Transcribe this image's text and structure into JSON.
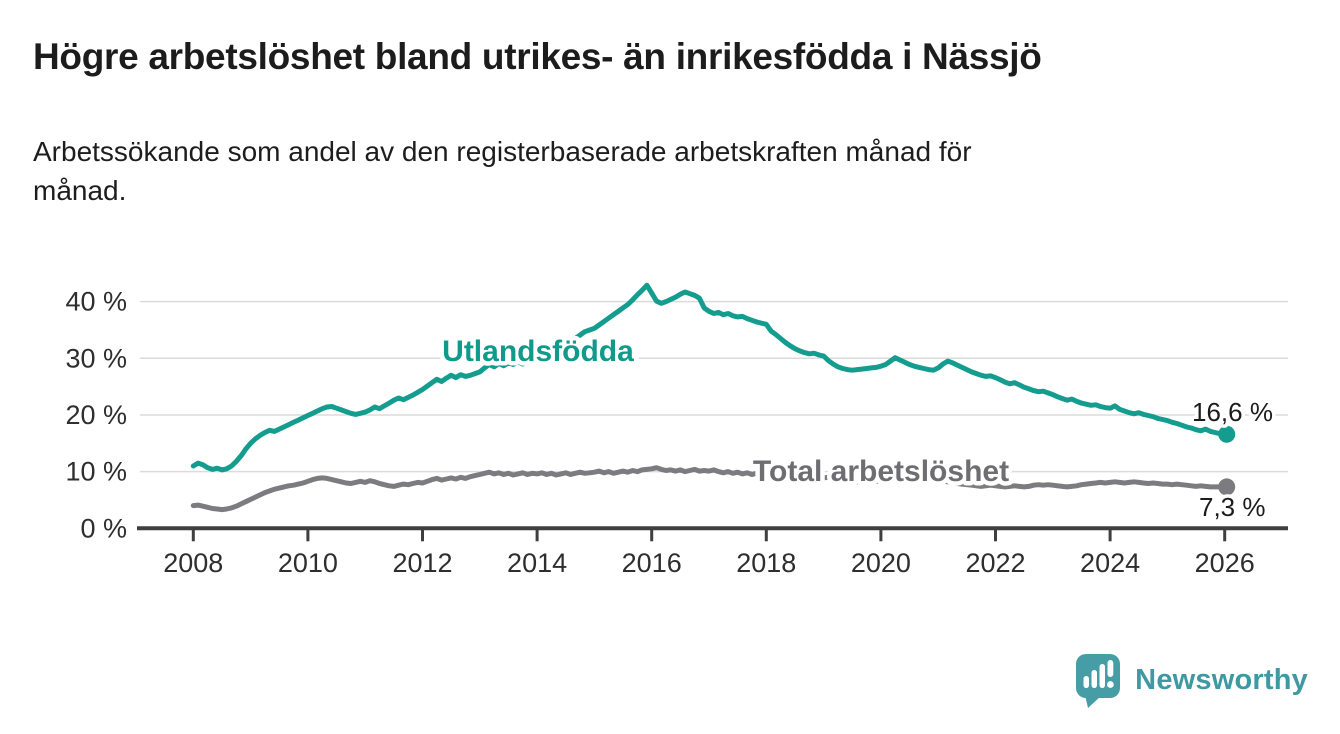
{
  "header": {
    "title": "Högre arbetslöshet bland utrikes- än inrikesfödda i Nässjö",
    "subtitle": "Arbetssökande som andel av den registerbaserade arbetskraften månad för\nmånad."
  },
  "chart_data": {
    "type": "line",
    "title": "Högre arbetslöshet bland utrikes- än inrikesfödda i Nässjö",
    "xlabel": "",
    "ylabel": "",
    "ylim": [
      0,
      44
    ],
    "grid": "horizontal",
    "x_start": "2008-01",
    "x_end": "2026-01",
    "points_per_year": 12,
    "x_tick_labels": [
      "2008",
      "2010",
      "2012",
      "2014",
      "2016",
      "2018",
      "2020",
      "2022",
      "2024",
      "2026"
    ],
    "y_tick_labels": [
      "0 %",
      "10 %",
      "20 %",
      "30 %",
      "40 %"
    ],
    "y_tick_values": [
      0,
      10,
      20,
      30,
      40
    ],
    "colors": {
      "teal_line": "#149d8e",
      "teal_label": "#0f9a8b",
      "gray_line": "#7c7c80",
      "gray_label": "#6e6e72",
      "axis": "#3f3f3f",
      "tick_text": "#2e2e2e",
      "gridline": "#dbdbdb",
      "value_text": "#1c1c1c"
    },
    "series": [
      {
        "name": "Utlandsfödda",
        "end_label": "16,6 %",
        "end_value": 16.6,
        "values": [
          11.0,
          11.5,
          11.2,
          10.7,
          10.4,
          10.6,
          10.3,
          10.5,
          11.0,
          11.8,
          12.8,
          14.0,
          15.0,
          15.8,
          16.4,
          16.9,
          17.3,
          17.1,
          17.5,
          17.9,
          18.3,
          18.7,
          19.1,
          19.5,
          19.9,
          20.3,
          20.7,
          21.1,
          21.4,
          21.5,
          21.2,
          20.9,
          20.6,
          20.3,
          20.1,
          20.3,
          20.5,
          20.9,
          21.4,
          21.1,
          21.6,
          22.1,
          22.6,
          23.0,
          22.7,
          23.1,
          23.5,
          24.0,
          24.5,
          25.1,
          25.7,
          26.3,
          25.9,
          26.5,
          27.0,
          26.6,
          27.1,
          26.8,
          27.0,
          27.3,
          27.6,
          28.3,
          28.9,
          28.5,
          29.1,
          28.7,
          29.2,
          28.9,
          29.4,
          29.0,
          29.3,
          29.5,
          29.4,
          29.8,
          30.2,
          30.6,
          31.0,
          31.5,
          32.1,
          32.8,
          33.5,
          34.1,
          34.7,
          35.0,
          35.3,
          35.9,
          36.5,
          37.1,
          37.7,
          38.3,
          38.9,
          39.5,
          40.3,
          41.2,
          42.0,
          42.9,
          41.5,
          40.1,
          39.7,
          40.0,
          40.4,
          40.8,
          41.3,
          41.7,
          41.4,
          41.1,
          40.6,
          38.9,
          38.3,
          37.9,
          38.1,
          37.7,
          37.9,
          37.5,
          37.3,
          37.4,
          37.0,
          36.7,
          36.4,
          36.2,
          36.0,
          34.8,
          34.2,
          33.5,
          32.8,
          32.2,
          31.7,
          31.3,
          31.0,
          30.8,
          30.9,
          30.6,
          30.4,
          29.6,
          29.0,
          28.5,
          28.2,
          28.0,
          27.9,
          28.0,
          28.1,
          28.2,
          28.3,
          28.4,
          28.6,
          28.9,
          29.5,
          30.1,
          29.7,
          29.3,
          28.9,
          28.6,
          28.4,
          28.2,
          28.0,
          27.9,
          28.3,
          29.0,
          29.5,
          29.2,
          28.8,
          28.4,
          28.0,
          27.6,
          27.3,
          27.0,
          26.8,
          26.9,
          26.6,
          26.2,
          25.8,
          25.5,
          25.7,
          25.3,
          24.9,
          24.6,
          24.3,
          24.1,
          24.2,
          23.9,
          23.6,
          23.2,
          22.9,
          22.6,
          22.8,
          22.4,
          22.1,
          21.9,
          21.7,
          21.8,
          21.5,
          21.3,
          21.2,
          21.6,
          21.0,
          20.7,
          20.4,
          20.2,
          20.4,
          20.1,
          19.9,
          19.7,
          19.4,
          19.2,
          19.0,
          18.7,
          18.5,
          18.2,
          17.9,
          17.7,
          17.4,
          17.2,
          17.5,
          17.1,
          16.9,
          16.7,
          16.6
        ]
      },
      {
        "name": "Total arbetslöshet",
        "end_label": "7,3 %",
        "end_value": 7.3,
        "values": [
          4.0,
          4.1,
          3.9,
          3.7,
          3.5,
          3.4,
          3.3,
          3.4,
          3.6,
          3.9,
          4.3,
          4.7,
          5.1,
          5.5,
          5.9,
          6.3,
          6.6,
          6.9,
          7.1,
          7.3,
          7.5,
          7.6,
          7.8,
          8.0,
          8.3,
          8.6,
          8.8,
          8.9,
          8.8,
          8.6,
          8.4,
          8.2,
          8.0,
          7.9,
          8.1,
          8.3,
          8.1,
          8.4,
          8.2,
          7.9,
          7.7,
          7.5,
          7.4,
          7.6,
          7.8,
          7.7,
          7.9,
          8.1,
          8.0,
          8.3,
          8.6,
          8.8,
          8.5,
          8.7,
          8.9,
          8.7,
          9.0,
          8.8,
          9.1,
          9.3,
          9.5,
          9.7,
          9.9,
          9.6,
          9.8,
          9.5,
          9.7,
          9.4,
          9.6,
          9.8,
          9.5,
          9.7,
          9.6,
          9.8,
          9.5,
          9.7,
          9.4,
          9.6,
          9.8,
          9.5,
          9.7,
          9.9,
          9.7,
          9.8,
          9.9,
          10.1,
          9.8,
          10.0,
          9.7,
          9.9,
          10.1,
          9.9,
          10.2,
          10.0,
          10.3,
          10.4,
          10.5,
          10.7,
          10.4,
          10.2,
          10.3,
          10.1,
          10.3,
          10.0,
          10.2,
          10.4,
          10.1,
          10.2,
          10.1,
          10.3,
          10.0,
          9.8,
          10.0,
          9.7,
          9.9,
          9.6,
          9.8,
          9.5,
          9.7,
          9.6,
          9.7,
          9.5,
          9.3,
          9.4,
          9.2,
          9.3,
          9.1,
          8.9,
          9.0,
          8.8,
          8.7,
          8.8,
          8.9,
          9.0,
          8.8,
          8.6,
          8.5,
          8.4,
          8.3,
          8.2,
          8.1,
          8.2,
          8.1,
          8.3,
          8.4,
          8.5,
          8.8,
          9.1,
          8.9,
          8.7,
          8.5,
          8.4,
          8.3,
          8.4,
          8.5,
          8.4,
          8.5,
          8.3,
          8.2,
          8.1,
          7.9,
          7.8,
          7.7,
          7.6,
          7.5,
          7.4,
          7.5,
          7.6,
          7.5,
          7.4,
          7.3,
          7.4,
          7.5,
          7.4,
          7.3,
          7.4,
          7.6,
          7.7,
          7.6,
          7.7,
          7.6,
          7.5,
          7.4,
          7.3,
          7.4,
          7.5,
          7.7,
          7.8,
          7.9,
          8.0,
          8.1,
          8.0,
          8.1,
          8.2,
          8.1,
          8.0,
          8.1,
          8.2,
          8.1,
          8.0,
          7.9,
          8.0,
          7.9,
          7.8,
          7.8,
          7.7,
          7.8,
          7.7,
          7.6,
          7.5,
          7.4,
          7.5,
          7.4,
          7.3,
          7.3,
          7.3,
          7.3
        ]
      }
    ],
    "legend_position": "inline-labels"
  },
  "footer": {
    "brand": "Newsworthy",
    "brand_color": "#3e99a2",
    "icon_color": "#469da5"
  }
}
